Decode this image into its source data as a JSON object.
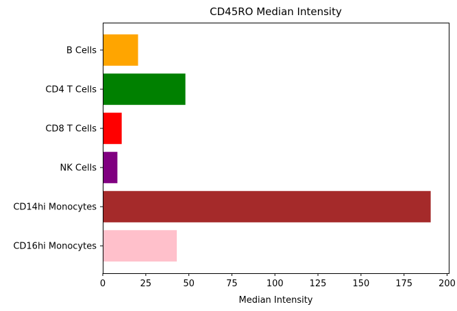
{
  "chart_data": {
    "type": "bar",
    "orientation": "horizontal",
    "title": "CD45RO Median Intensity",
    "xlabel": "Median Intensity",
    "ylabel": "",
    "categories": [
      "B Cells",
      "CD4 T Cells",
      "CD8 T Cells",
      "NK Cells",
      "CD14hi Monocytes",
      "CD16hi Monocytes"
    ],
    "values": [
      20.5,
      48.0,
      11.0,
      8.5,
      190.5,
      43.0
    ],
    "colors": [
      "#ffa500",
      "#008000",
      "#ff0000",
      "#800080",
      "#a52a2a",
      "#ffc0cb"
    ],
    "xlim": [
      0,
      201
    ],
    "xticks": [
      0,
      25,
      50,
      75,
      100,
      125,
      150,
      175,
      200
    ],
    "grid": false,
    "legend": "none"
  }
}
